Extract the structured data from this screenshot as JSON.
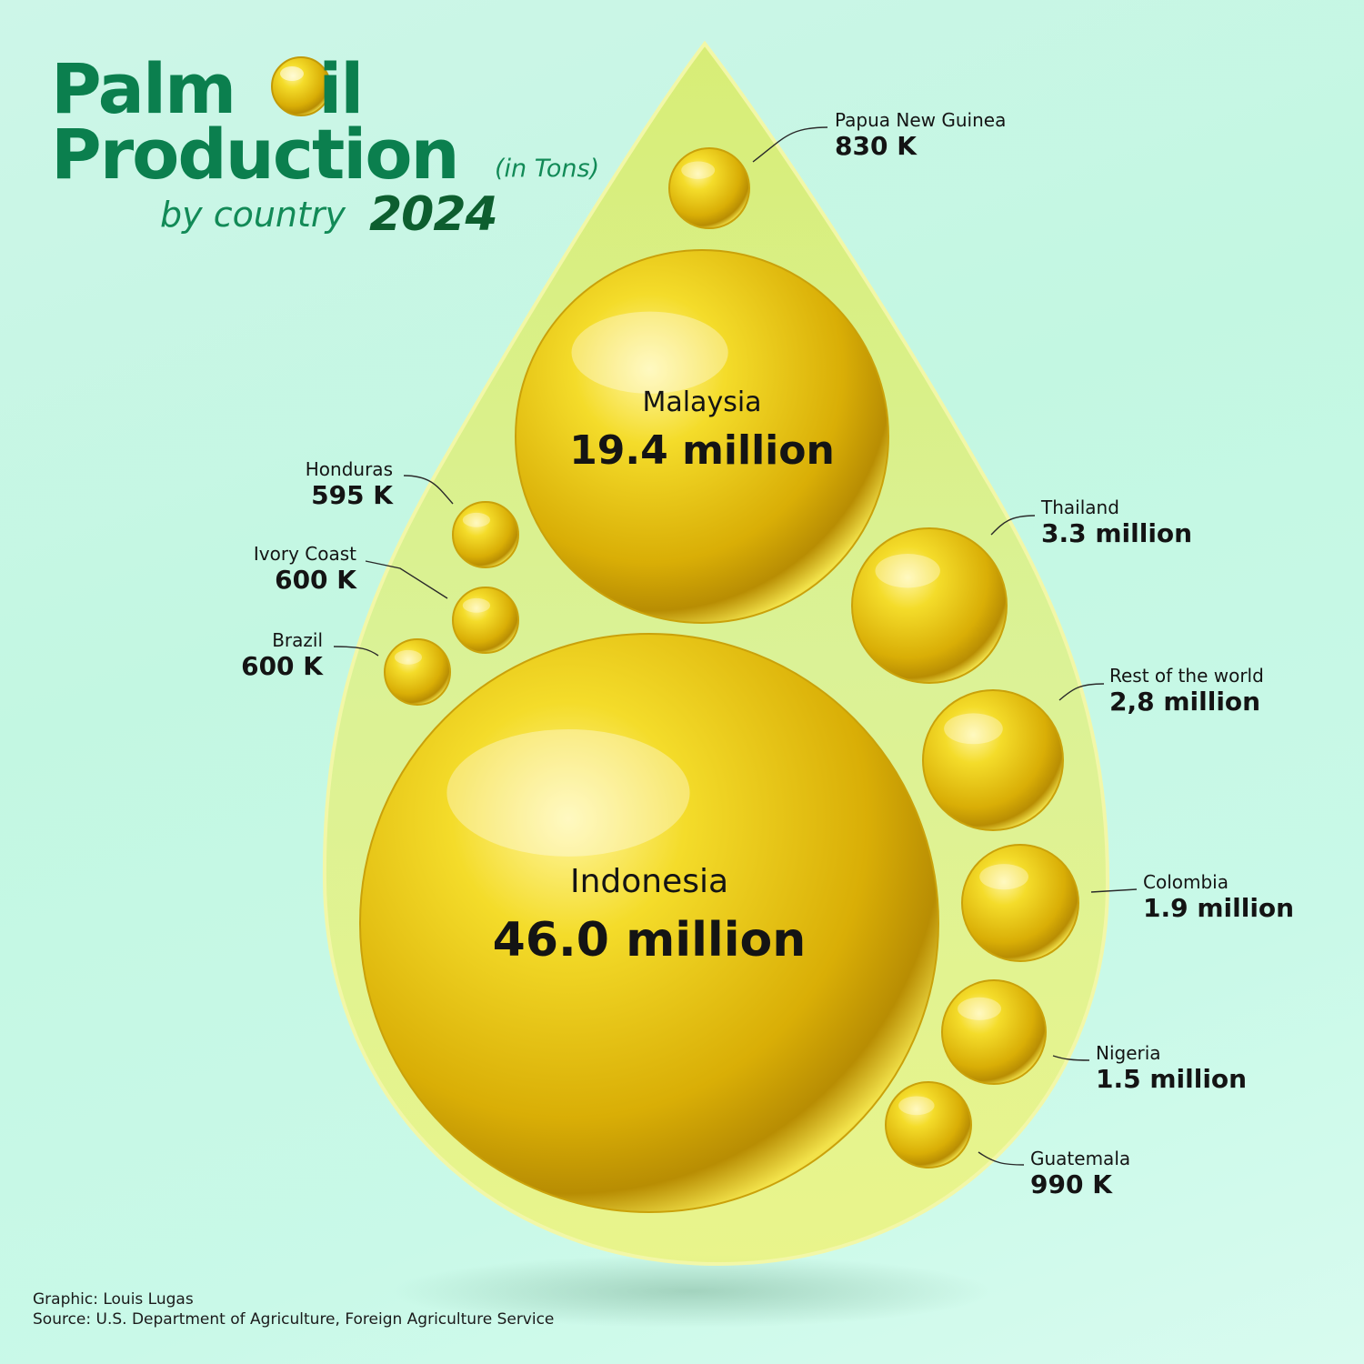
{
  "title": {
    "line1_left": "Palm",
    "line1_right": "il",
    "line2": "Production",
    "unit": "(in Tons)",
    "subtitle": "by country",
    "year": "2024"
  },
  "credit": "Graphic: Louis Lugas",
  "source": "Source: U.S. Department of Agriculture, Foreign Agriculture Service",
  "chart_data": {
    "type": "bubble",
    "title": "Palm Oil Production (in Tons) by country 2024",
    "unit": "tons",
    "series": [
      {
        "country": "Indonesia",
        "label": "46.0 million",
        "value": 46000000
      },
      {
        "country": "Malaysia",
        "label": "19.4 million",
        "value": 19400000
      },
      {
        "country": "Thailand",
        "label": "3.3 million",
        "value": 3300000
      },
      {
        "country": "Rest of the world",
        "label": "2,8 million",
        "value": 2800000
      },
      {
        "country": "Colombia",
        "label": "1.9 million",
        "value": 1900000
      },
      {
        "country": "Nigeria",
        "label": "1.5 million",
        "value": 1500000
      },
      {
        "country": "Guatemala",
        "label": "990 K",
        "value": 990000
      },
      {
        "country": "Papua New Guinea",
        "label": "830 K",
        "value": 830000
      },
      {
        "country": "Ivory Coast",
        "label": "600 K",
        "value": 600000
      },
      {
        "country": "Brazil",
        "label": "600 K",
        "value": 600000
      },
      {
        "country": "Honduras",
        "label": "595 K",
        "value": 595000
      }
    ]
  }
}
